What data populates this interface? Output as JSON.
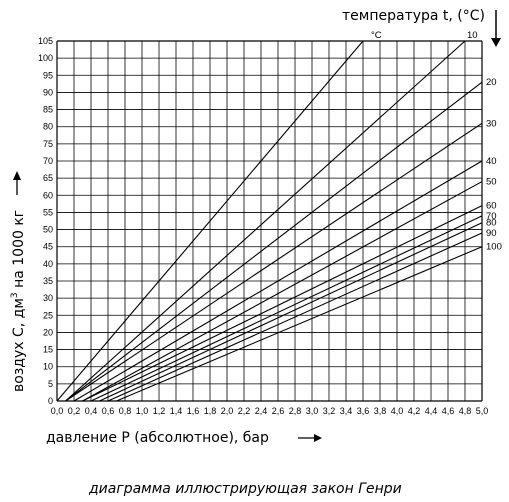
{
  "chart_data": {
    "type": "line",
    "title": "",
    "caption": "диаграмма иллюстрирующая закон Генри",
    "xlabel": "давление P (абсолютное), бар",
    "ylabel_prefix": "воздух С, дм",
    "ylabel_sup": "3",
    "ylabel_suffix": " на 1000 кг",
    "temperature_title": "температура t, (°C)",
    "temperature_unit": "°C",
    "xlim": [
      0.0,
      5.0
    ],
    "ylim": [
      0,
      105
    ],
    "x_ticks": [
      "0,0",
      "0,2",
      "0,4",
      "0,6",
      "0,8",
      "1,0",
      "1,2",
      "1,4",
      "1,6",
      "1,8",
      "2,0",
      "2,2",
      "2,4",
      "2,6",
      "2,8",
      "3,0",
      "3,2",
      "3,4",
      "3,6",
      "3,8",
      "4,0",
      "4,2",
      "4,4",
      "4,6",
      "4,8",
      "5,0"
    ],
    "y_ticks": [
      0,
      5,
      10,
      15,
      20,
      25,
      30,
      35,
      40,
      45,
      50,
      55,
      60,
      65,
      70,
      75,
      80,
      85,
      90,
      95,
      100,
      105
    ],
    "grid": true,
    "series": [
      {
        "name": "°C",
        "x": [
          0.0,
          3.6
        ],
        "y": [
          0,
          105
        ]
      },
      {
        "name": "10",
        "x": [
          0.1,
          4.8
        ],
        "y": [
          0,
          105
        ]
      },
      {
        "name": "20",
        "x": [
          0.1,
          5.0
        ],
        "y": [
          0,
          93
        ]
      },
      {
        "name": "30",
        "x": [
          0.1,
          5.0
        ],
        "y": [
          0,
          81
        ]
      },
      {
        "name": "40",
        "x": [
          0.2,
          5.0
        ],
        "y": [
          0,
          70
        ]
      },
      {
        "name": "50",
        "x": [
          0.3,
          5.0
        ],
        "y": [
          0,
          64
        ]
      },
      {
        "name": "60",
        "x": [
          0.3,
          5.0
        ],
        "y": [
          0,
          57
        ]
      },
      {
        "name": "70",
        "x": [
          0.4,
          5.0
        ],
        "y": [
          0,
          54
        ]
      },
      {
        "name": "80",
        "x": [
          0.5,
          5.0
        ],
        "y": [
          0,
          52
        ]
      },
      {
        "name": "90",
        "x": [
          0.6,
          5.0
        ],
        "y": [
          0,
          49
        ]
      },
      {
        "name": "100",
        "x": [
          0.7,
          5.0
        ],
        "y": [
          0,
          45
        ]
      }
    ],
    "color": "#000000"
  }
}
